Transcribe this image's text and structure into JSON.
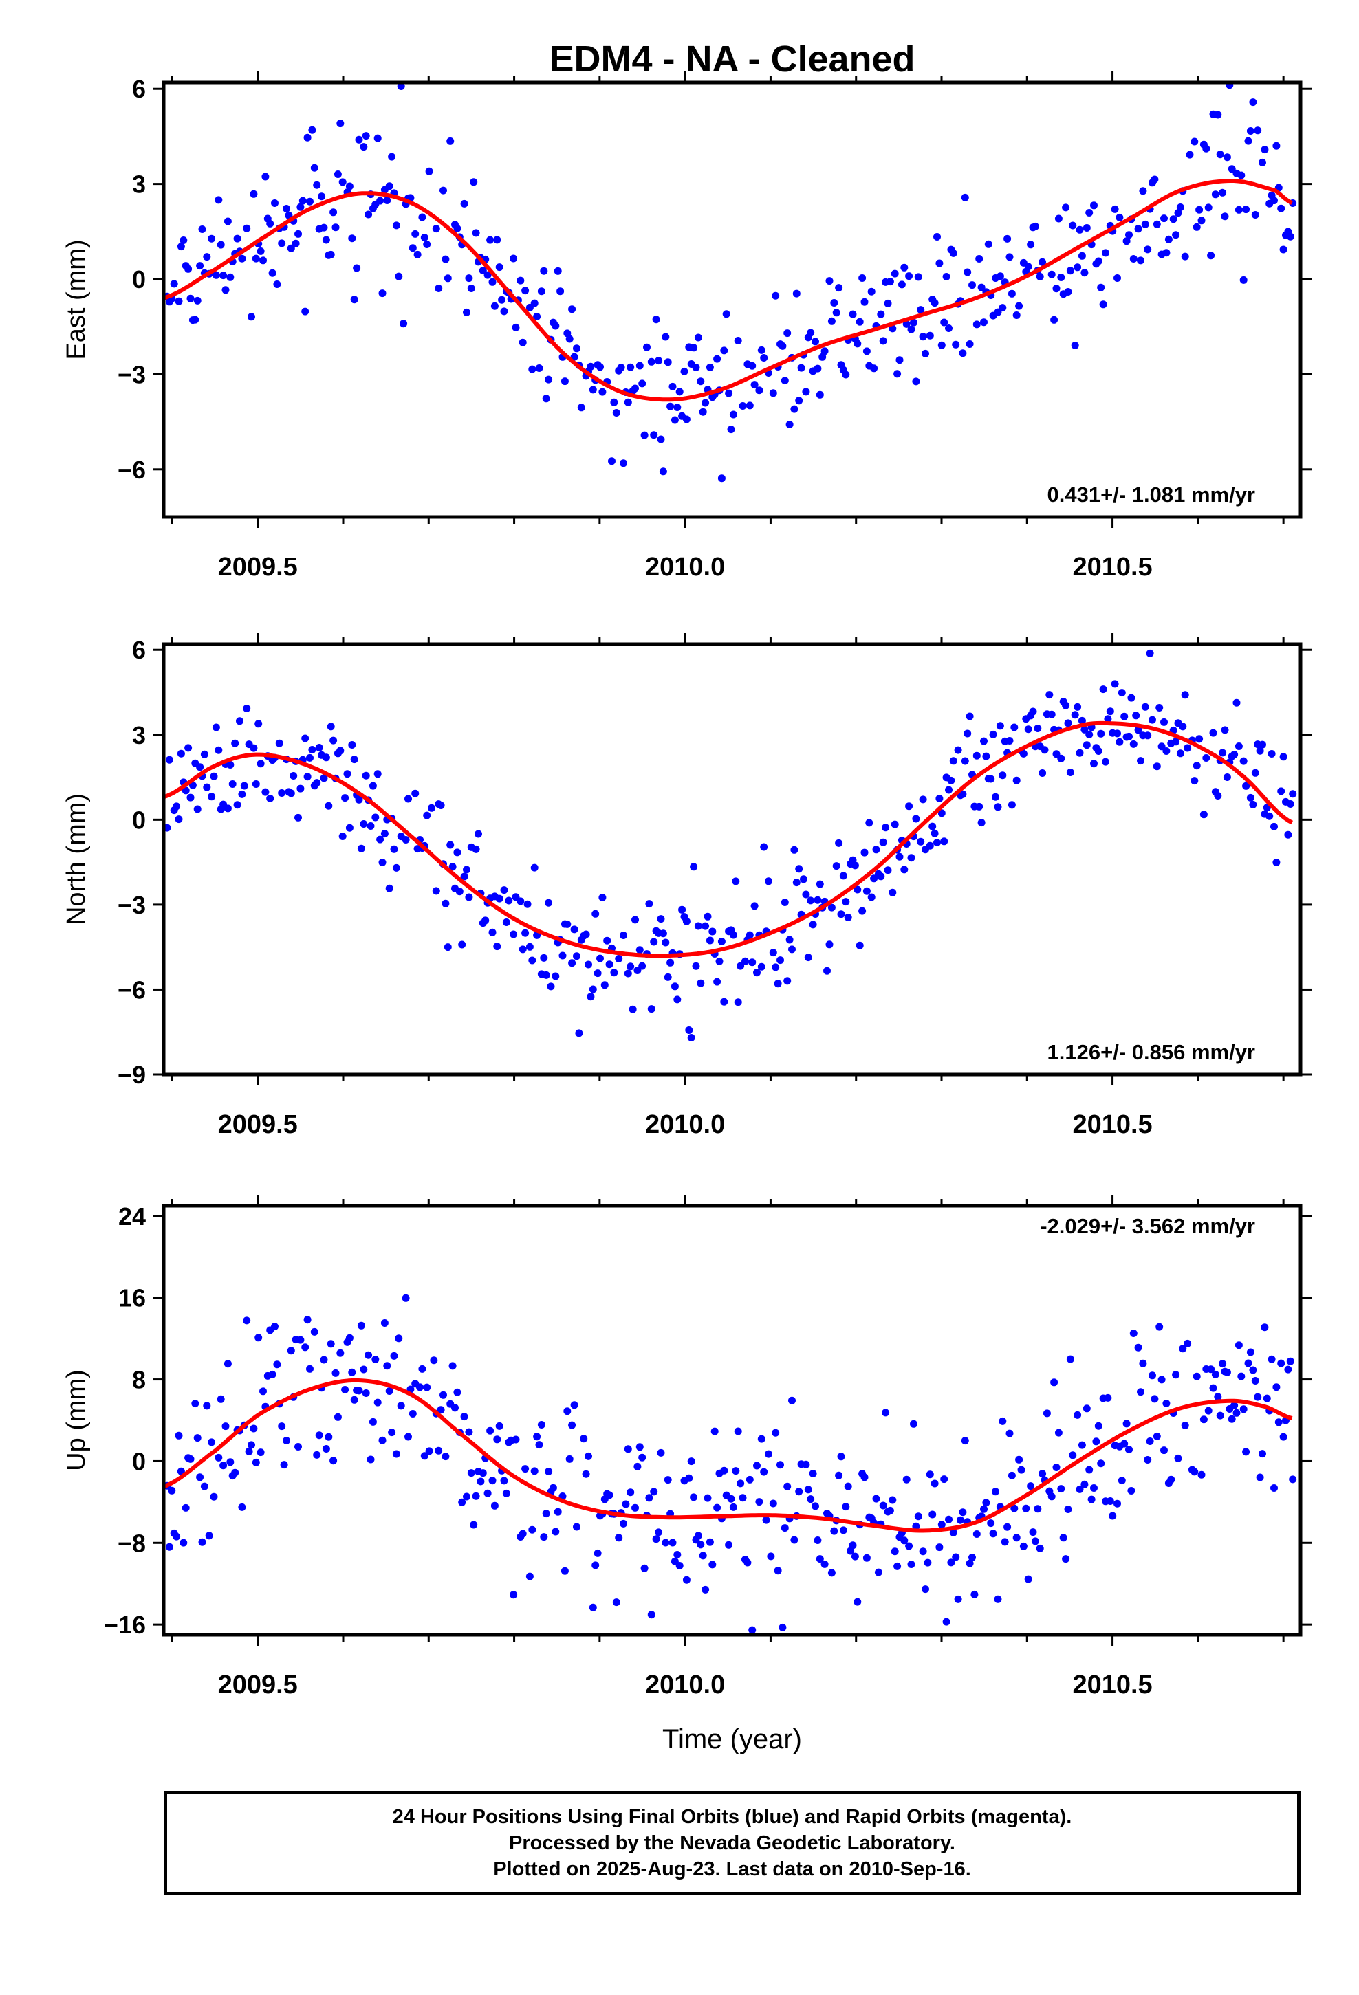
{
  "chart_data": [
    {
      "type": "scatter",
      "title": "EDM4  - NA - Cleaned",
      "xlabel": "",
      "ylabel": "East (mm)",
      "xlim": [
        2009.39,
        2010.72
      ],
      "ylim": [
        -7.5,
        6.2
      ],
      "xticks": [
        "2009.5",
        "2010.0",
        "2010.5"
      ],
      "yticks": [
        "6",
        "3",
        "0",
        "−3",
        "−6"
      ],
      "annotation": "0.431+/- 1.081 mm/yr",
      "fit_amplitude": 3.2,
      "noise": 1.1,
      "fit": {
        "x": [
          2009.39,
          2009.45,
          2009.5,
          2009.56,
          2009.62,
          2009.68,
          2009.74,
          2009.8,
          2009.86,
          2009.92,
          2009.98,
          2010.04,
          2010.1,
          2010.16,
          2010.22,
          2010.28,
          2010.34,
          2010.4,
          2010.46,
          2010.52,
          2010.58,
          2010.64,
          2010.69,
          2010.71
        ],
        "y": [
          -0.6,
          0.3,
          1.2,
          2.2,
          2.7,
          2.4,
          1.2,
          -0.6,
          -2.4,
          -3.5,
          -3.8,
          -3.5,
          -2.8,
          -2.1,
          -1.6,
          -1.1,
          -0.6,
          0.1,
          1.0,
          1.9,
          2.8,
          3.1,
          2.8,
          2.4
        ]
      }
    },
    {
      "type": "scatter",
      "title": "",
      "xlabel": "",
      "ylabel": "North (mm)",
      "xlim": [
        2009.39,
        2010.72
      ],
      "ylim": [
        -9,
        6.2
      ],
      "xticks": [
        "2009.5",
        "2010.0",
        "2010.5"
      ],
      "yticks": [
        "6",
        "3",
        "0",
        "−3",
        "−6",
        "−9"
      ],
      "annotation": "1.126+/- 0.856 mm/yr",
      "fit_amplitude": 4.0,
      "noise": 1.05,
      "fit": {
        "x": [
          2009.39,
          2009.45,
          2009.5,
          2009.56,
          2009.62,
          2009.68,
          2009.74,
          2009.8,
          2009.86,
          2009.92,
          2009.98,
          2010.04,
          2010.1,
          2010.16,
          2010.22,
          2010.28,
          2010.34,
          2010.4,
          2010.46,
          2010.5,
          2010.55,
          2010.6,
          2010.65,
          2010.71
        ],
        "y": [
          0.8,
          1.9,
          2.3,
          1.9,
          0.9,
          -0.6,
          -2.2,
          -3.5,
          -4.3,
          -4.7,
          -4.8,
          -4.6,
          -4.0,
          -3.1,
          -1.8,
          -0.1,
          1.5,
          2.6,
          3.3,
          3.4,
          3.2,
          2.6,
          1.6,
          -0.1
        ]
      }
    },
    {
      "type": "scatter",
      "title": "",
      "xlabel": "Time (year)",
      "ylabel": "Up (mm)",
      "xlim": [
        2009.39,
        2010.72
      ],
      "ylim": [
        -17,
        25
      ],
      "xticks": [
        "2009.5",
        "2010.0",
        "2010.5"
      ],
      "yticks": [
        "24",
        "16",
        "8",
        "0",
        "−8",
        "−16"
      ],
      "annotation": "-2.029+/- 3.562 mm/yr",
      "fit_amplitude": 8,
      "noise": 4.3,
      "fit": {
        "x": [
          2009.39,
          2009.45,
          2009.5,
          2009.56,
          2009.62,
          2009.68,
          2009.74,
          2009.8,
          2009.86,
          2009.92,
          2009.98,
          2010.04,
          2010.1,
          2010.16,
          2010.22,
          2010.28,
          2010.34,
          2010.4,
          2010.46,
          2010.52,
          2010.58,
          2010.64,
          2010.68,
          2010.71
        ],
        "y": [
          -2.5,
          1.0,
          4.5,
          7.0,
          7.9,
          6.5,
          2.5,
          -1.5,
          -4.0,
          -5.2,
          -5.5,
          -5.4,
          -5.3,
          -5.6,
          -6.3,
          -6.8,
          -6.0,
          -3.3,
          0.0,
          3.0,
          5.2,
          5.9,
          5.3,
          4.2
        ]
      }
    }
  ],
  "caption": {
    "line1": "24 Hour Positions Using Final Orbits (blue) and Rapid Orbits (magenta).",
    "line2": "Processed by the Nevada Geodetic Laboratory.",
    "line3": "Plotted on 2025-Aug-23. Last data on 2010-Sep-16."
  },
  "colors": {
    "points": "#0000ff",
    "fit": "#ff0000",
    "frame": "#000000"
  }
}
